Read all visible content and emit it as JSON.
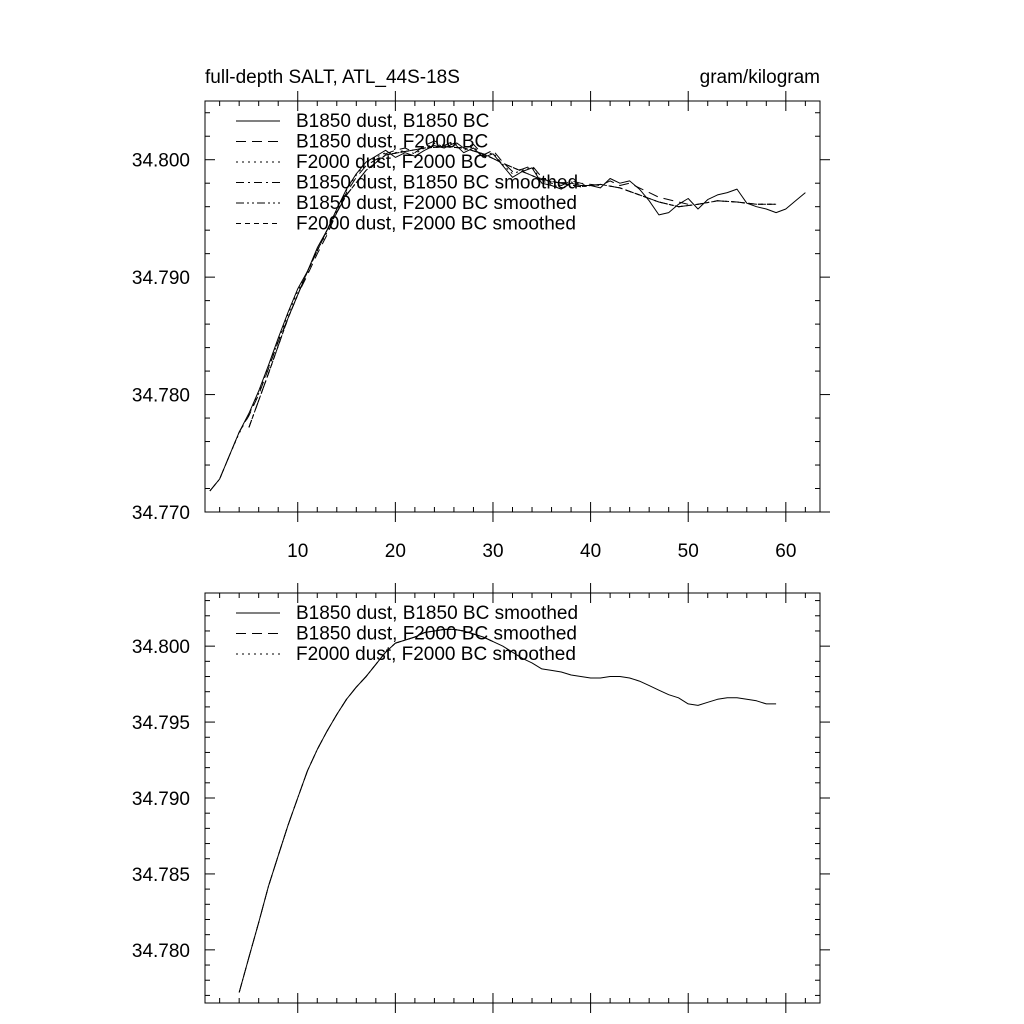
{
  "page": {
    "title_left": "full-depth SALT, ATL_44S-18S",
    "title_right": "gram/kilogram"
  },
  "chart_data": [
    {
      "type": "line",
      "title": "full-depth SALT, ATL_44S-18S",
      "units": "gram/kilogram",
      "xlabel": "",
      "ylabel": "",
      "xlim": [
        0.5,
        63.5
      ],
      "ylim": [
        34.77,
        34.805
      ],
      "x_ticks": [
        10,
        20,
        30,
        40,
        50,
        60
      ],
      "x_tick_labels": [
        "10",
        "20",
        "30",
        "40",
        "50",
        "60"
      ],
      "y_ticks": [
        34.77,
        34.78,
        34.79,
        34.8
      ],
      "y_tick_labels": [
        "34.770",
        "34.780",
        "34.790",
        "34.800"
      ],
      "grid": false,
      "legend_position": "top-left",
      "series": [
        {
          "name": "B1850 dust, B1850 BC",
          "dash": "solid",
          "x": [
            1,
            2,
            3,
            4,
            5,
            6,
            7,
            8,
            9,
            10,
            11,
            12,
            13,
            14,
            15,
            16,
            17,
            18,
            19,
            20,
            21,
            22,
            23,
            24,
            25,
            26,
            27,
            28,
            29,
            30,
            31,
            32,
            33,
            34,
            35,
            36,
            37,
            38,
            39,
            40,
            41,
            42,
            43,
            44,
            45,
            46,
            47,
            48,
            49,
            50,
            51,
            52,
            53,
            54,
            55,
            56,
            57,
            58,
            59,
            60,
            61,
            62
          ],
          "values": [
            34.7718,
            34.7728,
            34.7748,
            34.7768,
            34.7784,
            34.7803,
            34.7825,
            34.7848,
            34.787,
            34.789,
            34.7905,
            34.7925,
            34.794,
            34.7958,
            34.7975,
            34.7988,
            34.7998,
            34.8003,
            34.8008,
            34.8002,
            34.8006,
            34.8003,
            34.8008,
            34.8012,
            34.801,
            34.8014,
            34.8006,
            34.801,
            34.8002,
            34.8005,
            34.7995,
            34.7985,
            34.799,
            34.7993,
            34.798,
            34.7978,
            34.7975,
            34.798,
            34.7978,
            34.7978,
            34.7976,
            34.7984,
            34.798,
            34.7982,
            34.7975,
            34.7965,
            34.7953,
            34.7955,
            34.7962,
            34.7967,
            34.7958,
            34.7966,
            34.797,
            34.7972,
            34.7975,
            34.7963,
            34.796,
            34.7958,
            34.7955,
            34.7958,
            34.7965,
            34.7972
          ]
        },
        {
          "name": "B1850 dust, F2000 BC",
          "dash": "long-dash",
          "x": [
            1,
            2,
            3,
            4,
            5,
            6,
            7,
            8,
            9,
            10,
            11,
            12,
            13,
            14,
            15,
            16,
            17,
            18,
            19,
            20,
            21,
            22,
            23,
            24,
            25,
            26,
            27,
            28,
            29,
            30,
            31,
            32,
            33,
            34,
            35,
            36,
            37,
            38,
            39,
            40,
            41,
            42,
            43,
            44,
            45,
            46,
            47,
            48,
            49,
            50
          ],
          "values": [
            34.7718,
            34.7728,
            34.7748,
            34.7768,
            34.7782,
            34.78,
            34.7822,
            34.7845,
            34.7865,
            34.7885,
            34.7902,
            34.792,
            34.7936,
            34.7955,
            34.7972,
            34.7985,
            34.7995,
            34.8,
            34.8005,
            34.8008,
            34.801,
            34.8006,
            34.8012,
            34.8016,
            34.8012,
            34.8016,
            34.801,
            34.8013,
            34.8004,
            34.8008,
            34.7998,
            34.799,
            34.7992,
            34.7995,
            34.7985,
            34.798,
            34.7978,
            34.7982,
            34.798,
            34.7979,
            34.7978,
            34.7982,
            34.7978,
            34.798,
            34.7976,
            34.7972,
            34.7968,
            34.7966,
            34.7964,
            34.7962
          ]
        },
        {
          "name": "F2000 dust, F2000 BC",
          "dash": "dot",
          "x": [
            1,
            2,
            3,
            4,
            5,
            6,
            7,
            8,
            9,
            10,
            11,
            12,
            13,
            14,
            15,
            16,
            17,
            18,
            19,
            20,
            21,
            22,
            23,
            24,
            25,
            26,
            27,
            28,
            29,
            30,
            31,
            32,
            33,
            34,
            35,
            36,
            37,
            38,
            39,
            40
          ],
          "values": [
            34.7718,
            34.7728,
            34.7748,
            34.7767,
            34.7783,
            34.7801,
            34.7823,
            34.7846,
            34.7868,
            34.7888,
            34.7904,
            34.7923,
            34.7938,
            34.7957,
            34.7974,
            34.7987,
            34.7997,
            34.8002,
            34.8006,
            34.8006,
            34.8008,
            34.8005,
            34.801,
            34.8014,
            34.8011,
            34.8015,
            34.8008,
            34.8011,
            34.8003,
            34.8006,
            34.7996,
            34.7988,
            34.7991,
            34.7994,
            34.7982,
            34.7979,
            34.7976,
            34.7981,
            34.7979,
            34.7978
          ]
        },
        {
          "name": "B1850 dust, B1850 BC smoothed",
          "dash": "dash-dot",
          "x": [
            5,
            7,
            9,
            11,
            13,
            15,
            17,
            19,
            21,
            23,
            25,
            27,
            29,
            31,
            33,
            35,
            37,
            39,
            41,
            43,
            45,
            47,
            49,
            51,
            53,
            55,
            57,
            59
          ],
          "values": [
            34.7772,
            34.7818,
            34.7865,
            34.7905,
            34.794,
            34.797,
            34.7991,
            34.8004,
            34.8007,
            34.801,
            34.8011,
            34.801,
            34.8005,
            34.7997,
            34.799,
            34.7983,
            34.798,
            34.7977,
            34.7979,
            34.7976,
            34.797,
            34.7964,
            34.796,
            34.7962,
            34.7965,
            34.7964,
            34.7962,
            34.7962
          ]
        },
        {
          "name": "B1850 dust, F2000 BC smoothed",
          "dash": "dash-dot-dot",
          "x": [
            5,
            7,
            9,
            11,
            13,
            15,
            17,
            19,
            21,
            23,
            25,
            27,
            29,
            31,
            33,
            35,
            37,
            39,
            41,
            43,
            45,
            47,
            49,
            51,
            53,
            55,
            57,
            59
          ],
          "values": [
            34.7772,
            34.7818,
            34.7865,
            34.7905,
            34.794,
            34.797,
            34.7991,
            34.8004,
            34.8007,
            34.801,
            34.8011,
            34.801,
            34.8005,
            34.7997,
            34.799,
            34.7983,
            34.798,
            34.7977,
            34.7979,
            34.7976,
            34.797,
            34.7964,
            34.796,
            34.7962,
            34.7965,
            34.7964,
            34.7962,
            34.7962
          ]
        },
        {
          "name": "F2000 dust, F2000 BC smoothed",
          "dash": "dash",
          "x": [
            5,
            7,
            9,
            11,
            13,
            15,
            17,
            19,
            21,
            23,
            25,
            27,
            29,
            31,
            33,
            35,
            37,
            39,
            41,
            43,
            45,
            47,
            49,
            51,
            53,
            55,
            57,
            59
          ],
          "values": [
            34.7772,
            34.7818,
            34.7865,
            34.7905,
            34.794,
            34.797,
            34.7991,
            34.8004,
            34.8007,
            34.801,
            34.8011,
            34.801,
            34.8005,
            34.7997,
            34.799,
            34.7983,
            34.798,
            34.7977,
            34.7979,
            34.7976,
            34.797,
            34.7964,
            34.796,
            34.7962,
            34.7965,
            34.7964,
            34.7962,
            34.7962
          ]
        }
      ]
    },
    {
      "type": "line",
      "title": "",
      "xlabel": "",
      "ylabel": "",
      "xlim": [
        0.5,
        63.5
      ],
      "ylim": [
        34.7765,
        34.8035
      ],
      "x_ticks": [
        10,
        20,
        30,
        40,
        50,
        60
      ],
      "x_tick_labels": [],
      "y_ticks": [
        34.78,
        34.785,
        34.79,
        34.795,
        34.8
      ],
      "y_tick_labels": [
        "34.780",
        "34.785",
        "34.790",
        "34.795",
        "34.800"
      ],
      "grid": false,
      "legend_position": "top-left",
      "series": [
        {
          "name": "B1850 dust, B1850 BC smoothed",
          "dash": "solid",
          "x": [
            4,
            5,
            6,
            7,
            8,
            9,
            10,
            11,
            12,
            13,
            14,
            15,
            16,
            17,
            18,
            19,
            20,
            21,
            22,
            23,
            24,
            25,
            26,
            27,
            28,
            29,
            30,
            31,
            32,
            33,
            34,
            35,
            36,
            37,
            38,
            39,
            40,
            41,
            42,
            43,
            44,
            45,
            46,
            47,
            48,
            49,
            50,
            51,
            52,
            53,
            54,
            55,
            56,
            57,
            58,
            59
          ],
          "values": [
            34.7772,
            34.7795,
            34.7818,
            34.7842,
            34.7862,
            34.7882,
            34.79,
            34.7918,
            34.7932,
            34.7944,
            34.7955,
            34.7965,
            34.7973,
            34.798,
            34.7988,
            34.7996,
            34.8002,
            34.8004,
            34.8006,
            34.8009,
            34.801,
            34.8011,
            34.8011,
            34.801,
            34.8008,
            34.8006,
            34.8003,
            34.8,
            34.7996,
            34.7992,
            34.7989,
            34.7985,
            34.7984,
            34.7983,
            34.7981,
            34.798,
            34.7979,
            34.7979,
            34.798,
            34.798,
            34.7979,
            34.7977,
            34.7974,
            34.7971,
            34.7968,
            34.7966,
            34.7962,
            34.7961,
            34.7963,
            34.7965,
            34.7966,
            34.7966,
            34.7965,
            34.7964,
            34.7962,
            34.7962
          ]
        },
        {
          "name": "B1850 dust, F2000 BC smoothed",
          "dash": "long-dash",
          "x": [
            4,
            5,
            6,
            7,
            8,
            9,
            10,
            11,
            12,
            13,
            14,
            15,
            16,
            17,
            18,
            19,
            20,
            21,
            22,
            23,
            24,
            25,
            26,
            27,
            28,
            29,
            30
          ],
          "values": [
            34.7772,
            34.7795,
            34.7818,
            34.7842,
            34.7862,
            34.7882,
            34.79,
            34.7918,
            34.7932,
            34.7944,
            34.7955,
            34.7965,
            34.7973,
            34.798,
            34.7988,
            34.7996,
            34.8002,
            34.8004,
            34.8006,
            34.8009,
            34.801,
            34.8011,
            34.8011,
            34.801,
            34.8008,
            34.8006,
            34.8003
          ]
        },
        {
          "name": "F2000 dust, F2000 BC smoothed",
          "dash": "dot",
          "x": [
            4,
            5,
            6,
            7,
            8,
            9,
            10,
            11,
            12,
            13,
            14,
            15,
            16,
            17,
            18,
            19,
            20,
            21,
            22,
            23,
            24,
            25,
            26,
            27,
            28,
            29,
            30
          ],
          "values": [
            34.7772,
            34.7795,
            34.7818,
            34.7842,
            34.7862,
            34.7882,
            34.79,
            34.7918,
            34.7932,
            34.7944,
            34.7955,
            34.7965,
            34.7973,
            34.798,
            34.7988,
            34.7996,
            34.8002,
            34.8004,
            34.8006,
            34.8009,
            34.801,
            34.8011,
            34.8011,
            34.801,
            34.8008,
            34.8006,
            34.8003
          ]
        }
      ]
    }
  ]
}
